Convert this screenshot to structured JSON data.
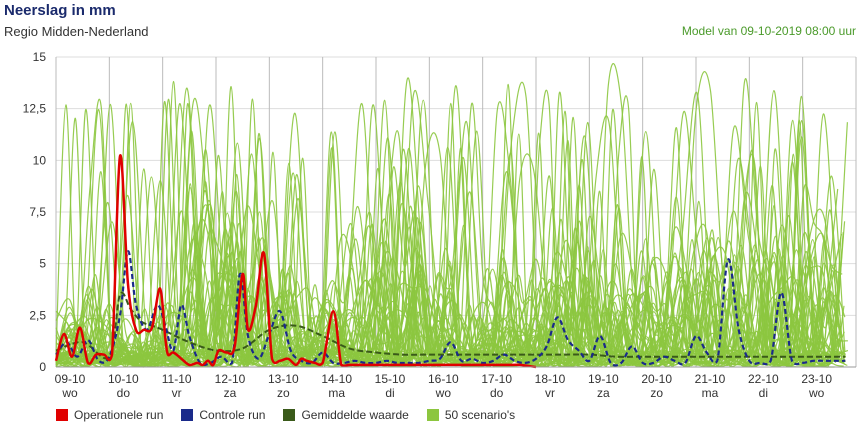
{
  "header": {
    "title": "Neerslag in mm",
    "subtitle": "Regio Midden-Nederland",
    "model": "Model van 09-10-2019 08:00 uur"
  },
  "colors": {
    "operational": "#e00000",
    "control": "#1a2a8a",
    "mean": "#3a5a1a",
    "scenarios": "#8cc63f",
    "grid": "#dddddd",
    "dayline": "#bbbbbb"
  },
  "chart_data": {
    "type": "line",
    "title": "Neerslag in mm",
    "ylim": [
      0,
      15
    ],
    "yticks": [
      "0",
      "2,5",
      "5",
      "7,5",
      "10",
      "12,5",
      "15"
    ],
    "ytick_values": [
      0,
      2.5,
      5,
      7.5,
      10,
      12.5,
      15
    ],
    "x_days": [
      {
        "date": "09-10",
        "day": "wo"
      },
      {
        "date": "10-10",
        "day": "do"
      },
      {
        "date": "11-10",
        "day": "vr"
      },
      {
        "date": "12-10",
        "day": "za"
      },
      {
        "date": "13-10",
        "day": "zo"
      },
      {
        "date": "14-10",
        "day": "ma"
      },
      {
        "date": "15-10",
        "day": "di"
      },
      {
        "date": "16-10",
        "day": "wo"
      },
      {
        "date": "17-10",
        "day": "do"
      },
      {
        "date": "18-10",
        "day": "vr"
      },
      {
        "date": "19-10",
        "day": "za"
      },
      {
        "date": "20-10",
        "day": "zo"
      },
      {
        "date": "21-10",
        "day": "ma"
      },
      {
        "date": "22-10",
        "day": "di"
      },
      {
        "date": "23-10",
        "day": "wo"
      }
    ],
    "series": [
      {
        "name": "Operationele run",
        "x": [
          0,
          0.15,
          0.3,
          0.45,
          0.6,
          0.75,
          0.9,
          1.05,
          1.2,
          1.35,
          1.5,
          1.65,
          1.8,
          1.95,
          2.05,
          2.1,
          2.2,
          2.35,
          2.5,
          2.65,
          2.75,
          2.85,
          2.95,
          3.05,
          3.2,
          3.35,
          3.5,
          3.6,
          3.75,
          3.9,
          4.05,
          4.2,
          4.35,
          4.5,
          4.6,
          4.7,
          4.85,
          5.0,
          5.2,
          5.35,
          5.5,
          5.7,
          5.9,
          6.1,
          6.3,
          6.5,
          6.7,
          6.85,
          6.95,
          7.05,
          7.15,
          7.3,
          7.5,
          7.7,
          7.9,
          8.1,
          8.3,
          8.5,
          8.7,
          9.0
        ],
        "values": [
          0.3,
          1.6,
          0.5,
          1.9,
          0.2,
          0.6,
          0.6,
          0.6,
          10.2,
          4.0,
          1.8,
          1.8,
          1.9,
          3.8,
          1.4,
          0.6,
          0.7,
          0.4,
          0.1,
          0.2,
          0.1,
          0.3,
          0.1,
          0.8,
          0.7,
          1.0,
          4.5,
          1.8,
          3.0,
          5.5,
          0.4,
          0.3,
          0.4,
          0.1,
          0.4,
          0.3,
          0.2,
          0.2,
          2.7,
          0.1,
          0.1,
          0.1,
          0.1,
          0.1,
          0.1,
          0.1,
          0.1,
          0.1,
          0.1,
          0.1,
          0.1,
          0.1,
          0.1,
          0.1,
          0.1,
          0.1,
          0.1,
          0.1,
          0.1,
          0.0
        ]
      },
      {
        "name": "Controle run",
        "x": [
          0,
          0.2,
          0.4,
          0.6,
          0.8,
          1.0,
          1.2,
          1.35,
          1.5,
          1.7,
          1.9,
          2.05,
          2.2,
          2.35,
          2.5,
          2.7,
          2.9,
          3.1,
          3.3,
          3.45,
          3.6,
          3.8,
          4.0,
          4.2,
          4.4,
          4.6,
          4.8,
          5.0,
          5.2,
          5.4,
          5.6,
          5.8,
          6.0,
          6.2,
          6.4,
          6.6,
          6.8,
          7.0,
          7.2,
          7.4,
          7.6,
          7.8,
          8.0,
          8.2,
          8.4,
          8.6,
          8.8,
          9.0,
          9.2,
          9.4,
          9.6,
          9.8,
          10.0,
          10.2,
          10.4,
          10.6,
          10.8,
          11.0,
          11.2,
          11.4,
          11.6,
          11.8,
          12.0,
          12.2,
          12.4,
          12.6,
          12.8,
          13.0,
          13.2,
          13.4,
          13.6,
          13.8,
          14.0,
          14.2,
          14.4,
          14.6,
          14.8
        ],
        "values": [
          0.6,
          1.2,
          0.5,
          1.3,
          0.3,
          0.5,
          2.5,
          5.6,
          3.0,
          1.8,
          3.0,
          2.0,
          0.8,
          3.0,
          1.5,
          0.2,
          0.2,
          0.5,
          0.2,
          4.5,
          1.5,
          0.4,
          1.6,
          2.7,
          0.8,
          0.3,
          0.2,
          0.7,
          0.2,
          0.2,
          0.3,
          0.2,
          0.2,
          0.3,
          0.2,
          0.2,
          0.2,
          0.3,
          0.4,
          1.2,
          0.3,
          0.4,
          0.2,
          0.3,
          0.6,
          0.3,
          0.2,
          0.4,
          1.0,
          2.4,
          1.3,
          0.8,
          0.3,
          1.5,
          0.2,
          0.2,
          1.0,
          0.2,
          0.2,
          0.5,
          0.3,
          0.2,
          1.5,
          0.7,
          0.3,
          5.2,
          1.8,
          0.3,
          0.2,
          0.3,
          3.6,
          0.3,
          0.2,
          0.3,
          0.3,
          0.3,
          0.3
        ]
      },
      {
        "name": "Gemiddelde waarde",
        "x": [
          0,
          0.5,
          1.0,
          1.2,
          1.4,
          1.6,
          1.8,
          2.0,
          2.5,
          3.0,
          3.5,
          4.0,
          4.5,
          5.0,
          5.5,
          6.0,
          6.5,
          7.0,
          7.5,
          8.0,
          8.5,
          9.0,
          9.5,
          10.0,
          10.5,
          11.0,
          11.5,
          12.0,
          12.5,
          13.0,
          13.5,
          14.0,
          14.5,
          14.8
        ],
        "values": [
          0.8,
          1.2,
          0.5,
          3.5,
          2.8,
          2.2,
          2.0,
          1.8,
          1.2,
          0.8,
          0.9,
          1.8,
          2.0,
          1.5,
          0.9,
          0.7,
          0.6,
          0.6,
          0.6,
          0.6,
          0.6,
          0.6,
          0.6,
          0.6,
          0.5,
          0.5,
          0.5,
          0.5,
          0.5,
          0.5,
          0.5,
          0.5,
          0.5,
          0.5
        ]
      },
      {
        "name": "50 scenario's",
        "values": []
      }
    ]
  },
  "legend": [
    {
      "label": "Operationele run",
      "color": "#e00000"
    },
    {
      "label": "Controle run",
      "color": "#1a2a8a"
    },
    {
      "label": "Gemiddelde waarde",
      "color": "#3a5a1a"
    },
    {
      "label": "50 scenario's",
      "color": "#8cc63f"
    }
  ]
}
